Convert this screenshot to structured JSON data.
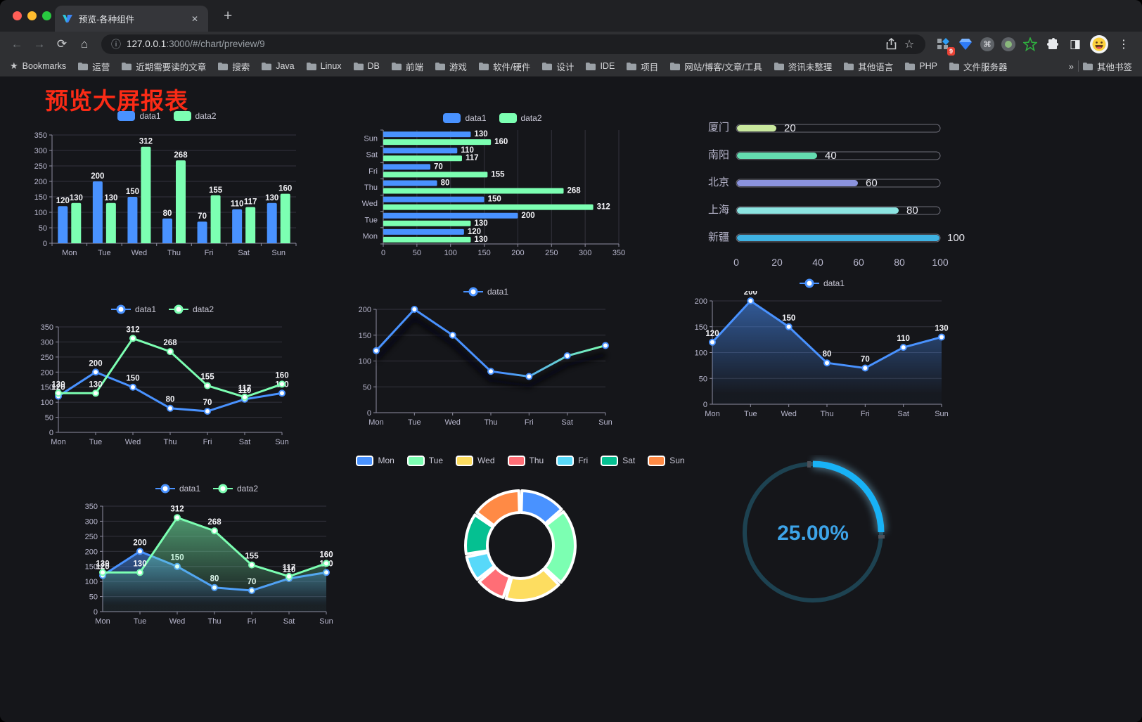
{
  "browser": {
    "tab": {
      "title": "预览-各种组件"
    },
    "new_tab_label": "+",
    "url": {
      "host": "127.0.0.1",
      "rest": ":3000/#/chart/preview/9"
    },
    "extension_badge": "9",
    "bookmarks_label": "Bookmarks",
    "bookmarks": [
      "运营",
      "近期需要读的文章",
      "搜索",
      "Java",
      "Linux",
      "DB",
      "前端",
      "游戏",
      "软件/硬件",
      "设计",
      "IDE",
      "项目",
      "网站/博客/文章/工具",
      "资讯未整理",
      "其他语言",
      "PHP",
      "文件服务器"
    ],
    "bookmarks_overflow": "»",
    "other_bookmarks": "其他书签",
    "icons": {
      "back": "←",
      "forward": "→",
      "reload": "⟳",
      "home": "⌂",
      "info": "ⓘ",
      "close": "✕",
      "star": "☆",
      "bookmarks_star": "★",
      "command": "⌘",
      "sidebar": "◨",
      "dots": "⋮"
    }
  },
  "page": {
    "title": "预览大屏报表",
    "title_color": "#fb2b16"
  },
  "chart_data": [
    {
      "id": "bar-vertical",
      "type": "bar",
      "categories": [
        "Mon",
        "Tue",
        "Wed",
        "Thu",
        "Fri",
        "Sat",
        "Sun"
      ],
      "series": [
        {
          "name": "data1",
          "color": "#4992ff",
          "values": [
            120,
            200,
            150,
            80,
            70,
            110,
            130
          ]
        },
        {
          "name": "data2",
          "color": "#7cffb2",
          "values": [
            130,
            130,
            312,
            268,
            155,
            117,
            160
          ]
        }
      ],
      "ylim": [
        0,
        350
      ],
      "ytick": 50,
      "legend_position": "top",
      "grid": true,
      "value_labels": true
    },
    {
      "id": "bar-horizontal",
      "type": "bar-horizontal",
      "categories": [
        "Mon",
        "Tue",
        "Wed",
        "Thu",
        "Fri",
        "Sat",
        "Sun"
      ],
      "series": [
        {
          "name": "data1",
          "color": "#4992ff",
          "values": [
            120,
            200,
            150,
            80,
            70,
            110,
            130
          ]
        },
        {
          "name": "data2",
          "color": "#7cffb2",
          "values": [
            130,
            130,
            312,
            268,
            155,
            117,
            160
          ]
        }
      ],
      "xlim": [
        0,
        350
      ],
      "xtick": 50,
      "legend_position": "top",
      "grid": true,
      "value_labels": true
    },
    {
      "id": "progress-list",
      "type": "bar",
      "items": [
        {
          "label": "厦门",
          "value": 20,
          "color": "#c9e89e"
        },
        {
          "label": "南阳",
          "value": 40,
          "color": "#64dcb0"
        },
        {
          "label": "北京",
          "value": 60,
          "color": "#8b93de"
        },
        {
          "label": "上海",
          "value": 80,
          "color": "#8ce4e1"
        },
        {
          "label": "新疆",
          "value": 100,
          "color": "#3fb2e2"
        }
      ],
      "max": 100,
      "xticks": [
        0,
        20,
        40,
        60,
        80,
        100
      ]
    },
    {
      "id": "line-two-series",
      "type": "line",
      "categories": [
        "Mon",
        "Tue",
        "Wed",
        "Thu",
        "Fri",
        "Sat",
        "Sun"
      ],
      "series": [
        {
          "name": "data1",
          "color": "#4992ff",
          "values": [
            120,
            200,
            150,
            80,
            70,
            110,
            130
          ]
        },
        {
          "name": "data2",
          "color": "#7cffb2",
          "values": [
            130,
            130,
            312,
            268,
            155,
            117,
            160
          ]
        }
      ],
      "ylim": [
        0,
        350
      ],
      "ytick": 50,
      "value_labels": true,
      "area": false
    },
    {
      "id": "line-gradient",
      "type": "line",
      "categories": [
        "Mon",
        "Tue",
        "Wed",
        "Thu",
        "Fri",
        "Sat",
        "Sun"
      ],
      "series": [
        {
          "name": "data1",
          "color": "#4992ff",
          "color_end": "#7cffb2",
          "values": [
            120,
            200,
            150,
            80,
            70,
            110,
            130
          ]
        }
      ],
      "ylim": [
        0,
        200
      ],
      "ytick": 50,
      "value_labels": false,
      "gradient_stroke": true,
      "shadow": true
    },
    {
      "id": "line-area",
      "type": "area",
      "categories": [
        "Mon",
        "Tue",
        "Wed",
        "Thu",
        "Fri",
        "Sat",
        "Sun"
      ],
      "series": [
        {
          "name": "data1",
          "color": "#4992ff",
          "values": [
            120,
            200,
            150,
            80,
            70,
            110,
            130
          ]
        }
      ],
      "ylim": [
        0,
        200
      ],
      "ytick": 50,
      "value_labels": true,
      "area": true
    },
    {
      "id": "line-area-two",
      "type": "area",
      "categories": [
        "Mon",
        "Tue",
        "Wed",
        "Thu",
        "Fri",
        "Sat",
        "Sun"
      ],
      "series": [
        {
          "name": "data1",
          "color": "#4992ff",
          "values": [
            120,
            200,
            150,
            80,
            70,
            110,
            130
          ]
        },
        {
          "name": "data2",
          "color": "#7cffb2",
          "values": [
            130,
            130,
            312,
            268,
            155,
            117,
            160
          ]
        }
      ],
      "ylim": [
        0,
        350
      ],
      "ytick": 50,
      "value_labels": true,
      "area": true
    },
    {
      "id": "donut",
      "type": "pie",
      "slices": [
        {
          "label": "Mon",
          "value": 120,
          "color": "#4992ff"
        },
        {
          "label": "Tue",
          "value": 200,
          "color": "#7cffb2"
        },
        {
          "label": "Wed",
          "value": 150,
          "color": "#fddd60"
        },
        {
          "label": "Thu",
          "value": 80,
          "color": "#ff6e76"
        },
        {
          "label": "Fri",
          "value": 70,
          "color": "#58d9f9"
        },
        {
          "label": "Sat",
          "value": 110,
          "color": "#05c091"
        },
        {
          "label": "Sun",
          "value": 130,
          "color": "#ff8a45"
        }
      ],
      "inner_radius": 47,
      "outer_radius": 78,
      "legend_position": "top"
    },
    {
      "id": "gauge",
      "type": "gauge",
      "value": 25,
      "display": "25.00%",
      "arc_color": "#18b2f6",
      "track_color": "#1d4251",
      "text_color": "#3da4e8"
    }
  ]
}
